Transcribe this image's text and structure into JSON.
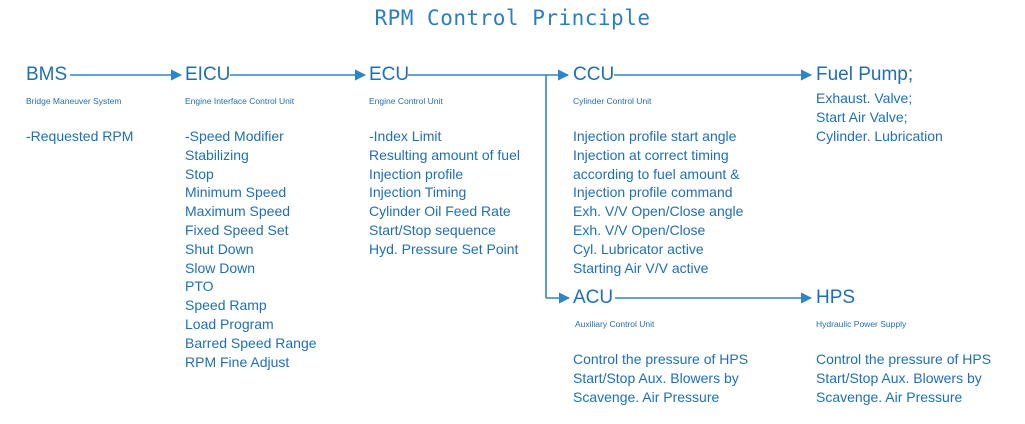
{
  "title": "RPM Control Principle",
  "colors": {
    "text": "#1f6fb6",
    "arrow": "#2f84c7"
  },
  "nodes": {
    "bms": {
      "name": "BMS",
      "sub": "Bridge Maneuver System",
      "items": [
        "-Requested RPM"
      ]
    },
    "eicu": {
      "name": "EICU",
      "sub": "Engine Interface Control Unit",
      "items": [
        "-Speed Modifier",
        "Stabilizing",
        "Stop",
        "Minimum Speed",
        "Maximum Speed",
        "Fixed Speed Set",
        "Shut Down",
        "Slow Down",
        "PTO",
        "Speed Ramp",
        "Load Program",
        "Barred Speed Range",
        "RPM Fine Adjust"
      ]
    },
    "ecu": {
      "name": "ECU",
      "sub": "Engine Control Unit",
      "items": [
        "-Index Limit",
        "Resulting amount of fuel",
        "Injection profile",
        "Injection Timing",
        "Cylinder Oil Feed Rate",
        "Start/Stop sequence",
        "Hyd. Pressure Set Point"
      ]
    },
    "ccu": {
      "name": "CCU",
      "sub": "Cylinder Control Unit",
      "items": [
        "Injection profile start angle",
        "Injection at correct timing",
        "according to fuel amount &",
        "Injection profile command",
        "Exh. V/V Open/Close angle",
        "Exh. V/V Open/Close",
        "Cyl. Lubricator active",
        "Starting Air V/V active"
      ]
    },
    "fuel": {
      "name": "Fuel Pump;",
      "items": [
        "Exhaust. Valve;",
        "Start Air Valve;",
        "Cylinder. Lubrication"
      ]
    },
    "acu": {
      "name": "ACU",
      "sub": "Auxiliary Control Unit",
      "items": [
        "Control the pressure of HPS",
        "Start/Stop Aux. Blowers by",
        "Scavenge. Air Pressure"
      ]
    },
    "hps": {
      "name": "HPS",
      "sub": "Hydraulic Power Supply",
      "items": [
        "Control the pressure of HPS",
        "Start/Stop Aux. Blowers by",
        "Scavenge. Air Pressure"
      ]
    }
  }
}
